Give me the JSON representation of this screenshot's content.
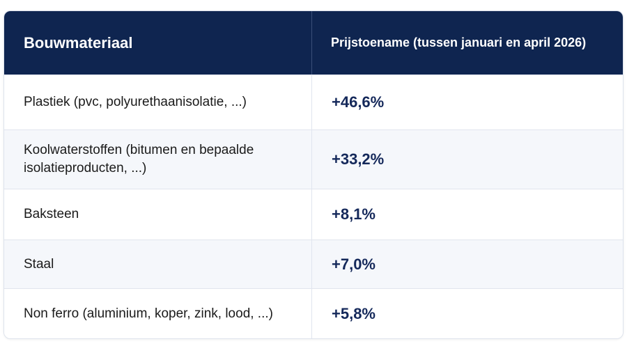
{
  "chart_data": {
    "type": "table",
    "columns": [
      "Bouwmateriaal",
      "Prijstoename (tussen januari en april 2026)"
    ],
    "rows": [
      {
        "material": "Plastiek (pvc, polyurethaanisolatie, ...)",
        "increase": "+46,6%",
        "value": 46.6
      },
      {
        "material": "Koolwaterstoffen (bitumen en bepaalde isolatieproducten, ...)",
        "increase": "+33,2%",
        "value": 33.2
      },
      {
        "material": "Baksteen",
        "increase": "+8,1%",
        "value": 8.1
      },
      {
        "material": "Staal",
        "increase": "+7,0%",
        "value": 7.0
      },
      {
        "material": "Non ferro (aluminium, koper, zink, lood, ...)",
        "increase": "+5,8%",
        "value": 5.8
      }
    ]
  },
  "colors": {
    "header_background": "#0f2550",
    "value_text": "#14285a",
    "alt_row_background": "#f5f7fb"
  }
}
